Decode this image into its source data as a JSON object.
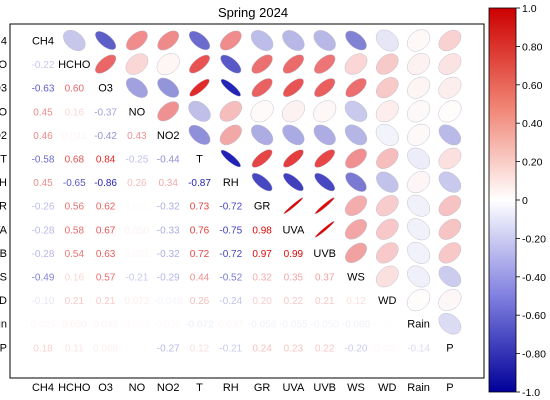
{
  "chart_data": {
    "type": "heatmap",
    "title": "Spring 2024",
    "variables": [
      "CH4",
      "HCHO",
      "O3",
      "NO",
      "NO2",
      "T",
      "RH",
      "GR",
      "UVA",
      "UVB",
      "WS",
      "WD",
      "Rain",
      "P"
    ],
    "correlations": [
      [
        1,
        -0.22,
        -0.63,
        0.45,
        0.46,
        -0.58,
        0.45,
        -0.26,
        -0.28,
        -0.28,
        -0.49,
        -0.1,
        0.026,
        0.18
      ],
      [
        -0.22,
        1,
        0.6,
        0.16,
        0.041,
        0.68,
        -0.65,
        0.56,
        0.58,
        0.54,
        0.16,
        0.21,
        0.05,
        0.11
      ],
      [
        -0.63,
        0.6,
        1,
        -0.37,
        -0.42,
        0.84,
        -0.86,
        0.62,
        0.67,
        0.63,
        0.57,
        0.21,
        0.045,
        0.068
      ],
      [
        0.45,
        0.16,
        -0.37,
        1,
        0.43,
        -0.25,
        0.26,
        0.021,
        0.05,
        0.031,
        -0.21,
        0.072,
        0.025,
        0.01
      ],
      [
        0.46,
        0.041,
        -0.42,
        0.43,
        1,
        -0.44,
        0.34,
        -0.32,
        -0.33,
        -0.32,
        -0.29,
        -0.048,
        0.022,
        -0.27
      ],
      [
        -0.58,
        0.68,
        0.84,
        -0.25,
        -0.44,
        1,
        -0.87,
        0.73,
        0.76,
        0.72,
        0.44,
        0.26,
        -0.072,
        0.12
      ],
      [
        0.45,
        -0.65,
        -0.86,
        0.26,
        0.34,
        -0.87,
        1,
        -0.72,
        -0.75,
        -0.72,
        -0.52,
        -0.24,
        0.037,
        -0.21
      ],
      [
        -0.26,
        0.56,
        0.62,
        0.021,
        -0.32,
        0.73,
        -0.72,
        1,
        0.98,
        0.97,
        0.32,
        0.2,
        -0.056,
        0.24
      ],
      [
        -0.28,
        0.58,
        0.67,
        0.05,
        -0.33,
        0.76,
        -0.75,
        0.98,
        1,
        0.99,
        0.35,
        0.22,
        -0.055,
        0.23
      ],
      [
        -0.28,
        0.54,
        0.63,
        0.031,
        -0.32,
        0.72,
        -0.72,
        0.97,
        0.99,
        1,
        0.37,
        0.21,
        -0.05,
        0.22
      ],
      [
        -0.49,
        0.16,
        0.57,
        -0.21,
        -0.29,
        0.44,
        -0.52,
        0.32,
        0.35,
        0.37,
        1,
        0.12,
        -0.06,
        -0.2
      ],
      [
        -0.1,
        0.21,
        0.21,
        0.072,
        -0.048,
        0.26,
        -0.24,
        0.2,
        0.22,
        0.21,
        0.12,
        1,
        0.01,
        0.03
      ],
      [
        0.026,
        0.05,
        0.045,
        0.025,
        0.022,
        -0.072,
        0.037,
        -0.056,
        -0.055,
        -0.05,
        -0.06,
        0.01,
        1,
        -0.14
      ],
      [
        0.18,
        0.11,
        0.068,
        0.01,
        -0.27,
        0.12,
        -0.21,
        0.24,
        0.23,
        0.22,
        -0.2,
        0.03,
        -0.14,
        1
      ]
    ],
    "lower_triangle": "numbers",
    "upper_triangle": "ellipses",
    "colorbar": {
      "range": [
        -1.0,
        1.0
      ],
      "ticks": [
        "1.0",
        "0.80",
        "0.60",
        "0.40",
        "0.20",
        "0",
        "-0.20",
        "-0.40",
        "-0.60",
        "-0.80",
        "-1.0"
      ],
      "colors": {
        "negative": "#0000aa",
        "zero": "#ffffff",
        "positive": "#dd0000"
      }
    }
  }
}
